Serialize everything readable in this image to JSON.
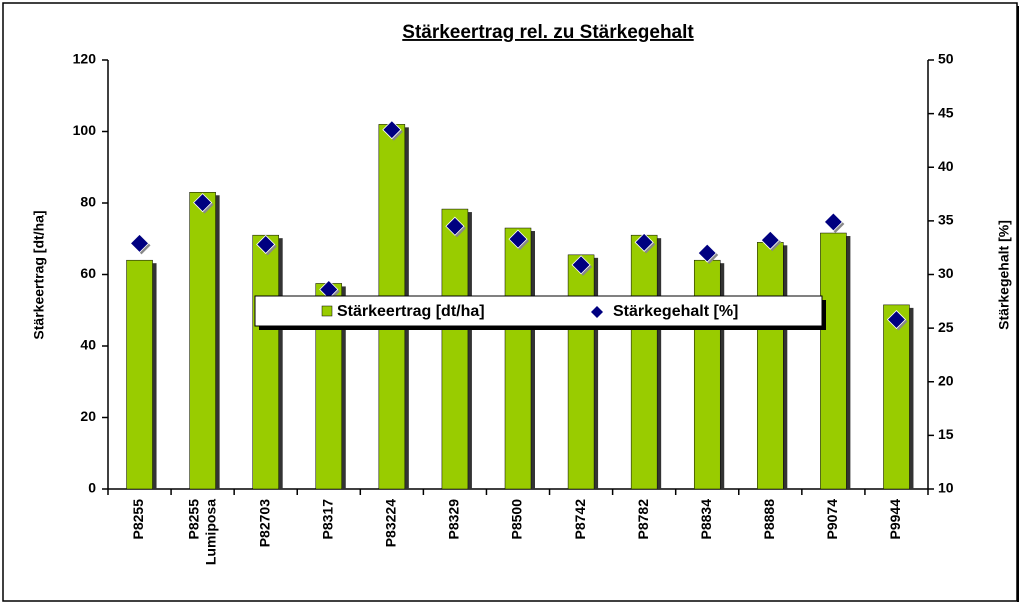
{
  "chart_data": {
    "type": "bar_scatter",
    "title": "Stärkeertrag rel. zu Stärkegehalt",
    "categories": [
      "P8255",
      "P8255 Lumiposa",
      "P82703",
      "P8317",
      "P83224",
      "P8329",
      "P8500",
      "P8742",
      "P8782",
      "P8834",
      "P8888",
      "P9074",
      "P9944"
    ],
    "series": [
      {
        "name": "Stärkeertrag [dt/ha]",
        "color": "#99cc00",
        "values": [
          64,
          83,
          71,
          57.5,
          102,
          78.3,
          73,
          65.5,
          71,
          64,
          69,
          71.6,
          51.5
        ]
      },
      {
        "name": "Stärkegehalt [%]",
        "color": "#000080",
        "axis": "y2",
        "values": [
          32.9,
          36.7,
          32.8,
          28.6,
          43.5,
          34.5,
          33.3,
          30.9,
          33,
          32,
          33.2,
          34.9,
          25.8
        ]
      }
    ],
    "ylabel": "Stärkeertrag [dt/ha]",
    "y2label": "Stärkegehalt [%]",
    "ylim": [
      0,
      120
    ],
    "yticks": [
      0,
      20,
      40,
      60,
      80,
      100,
      120
    ],
    "y2lim": [
      10,
      50
    ],
    "y2ticks": [
      10,
      15,
      20,
      25,
      30,
      35,
      40,
      45,
      50
    ]
  }
}
